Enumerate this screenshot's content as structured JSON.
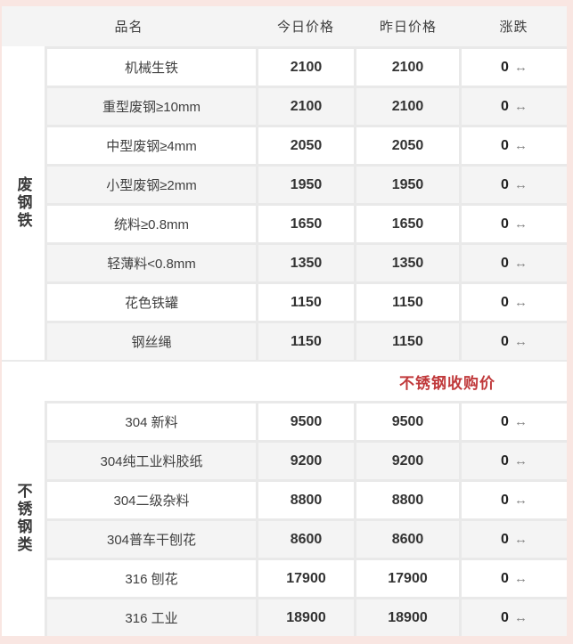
{
  "meta": {
    "arrow_glyph": "↔",
    "colors": {
      "frame_pink": "#f9e6e2",
      "header_gray": "#f4f4f4",
      "alt_row_gray": "#f4f4f4",
      "grid_line": "#e9e9e9",
      "section_label_red": "#c0393b",
      "arrow_gray": "#858585"
    }
  },
  "header": {
    "product": "品名",
    "today": "今日价格",
    "yesterday": "昨日价格",
    "change": "涨跌"
  },
  "scrap_section": {
    "category": "废钢铁",
    "rows": [
      {
        "name": "机械生铁",
        "today": "2100",
        "yesterday": "2100",
        "change": "0"
      },
      {
        "name": "重型废钢≥10mm",
        "today": "2100",
        "yesterday": "2100",
        "change": "0"
      },
      {
        "name": "中型废钢≥4mm",
        "today": "2050",
        "yesterday": "2050",
        "change": "0"
      },
      {
        "name": "小型废钢≥2mm",
        "today": "1950",
        "yesterday": "1950",
        "change": "0"
      },
      {
        "name": "统料≥0.8mm",
        "today": "1650",
        "yesterday": "1650",
        "change": "0"
      },
      {
        "name": "轻薄料<0.8mm",
        "today": "1350",
        "yesterday": "1350",
        "change": "0"
      },
      {
        "name": "花色铁罐",
        "today": "1150",
        "yesterday": "1150",
        "change": "0"
      },
      {
        "name": "钢丝绳",
        "today": "1150",
        "yesterday": "1150",
        "change": "0"
      }
    ]
  },
  "stainless_label": "不锈钢收购价",
  "stainless_section": {
    "category": "不锈钢类",
    "rows": [
      {
        "name": "304 新料",
        "today": "9500",
        "yesterday": "9500",
        "change": "0"
      },
      {
        "name": "304纯工业料胶纸",
        "today": "9200",
        "yesterday": "9200",
        "change": "0"
      },
      {
        "name": "304二级杂料",
        "today": "8800",
        "yesterday": "8800",
        "change": "0"
      },
      {
        "name": "304普车干刨花",
        "today": "8600",
        "yesterday": "8600",
        "change": "0"
      },
      {
        "name": "316 刨花",
        "today": "17900",
        "yesterday": "17900",
        "change": "0"
      },
      {
        "name": "316 工业",
        "today": "18900",
        "yesterday": "18900",
        "change": "0"
      }
    ]
  }
}
